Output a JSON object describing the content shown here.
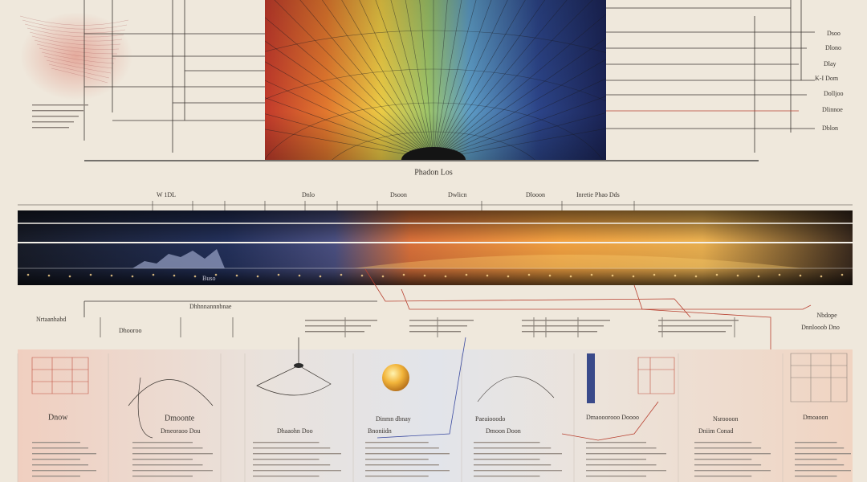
{
  "top": {
    "caption": "Phadon Los",
    "right_labels": [
      "Dsoo",
      "Dlono",
      "Dlay",
      "K-I Dom",
      "Dolljoo",
      "Dlinnoe",
      "Dblon"
    ]
  },
  "band": {
    "labels": [
      "W 1DL",
      "Dnlo",
      "Dsoon",
      "Dwlicn",
      "Dlooon",
      "Inretie Phao Dds"
    ],
    "sublabel": "Buso"
  },
  "section": {
    "labels": [
      "Nrtaanhabd",
      "Dhooroo",
      "Dhhnnannnbnae",
      "Nbdope",
      "Dnnlooob Dno"
    ]
  },
  "panels": {
    "titles": [
      "Dnow",
      "Dmoonte",
      "Dmeoraoo Dou",
      "Dhaaohn Doo",
      "Dinmn dbnay",
      "Bnoniidn",
      "Paeaiooodo",
      "Dmoon Doon",
      "Dmaooorooo Doooo",
      "Nsroooon",
      "Dniim Conad",
      "Dmoaoon"
    ]
  }
}
